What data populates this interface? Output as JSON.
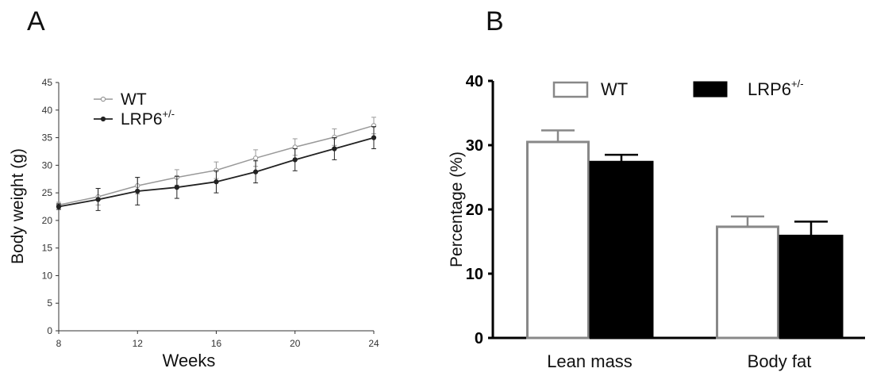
{
  "panels": {
    "A": {
      "letter": "A"
    },
    "B": {
      "letter": "B"
    }
  },
  "chart_data": [
    {
      "type": "line",
      "xlabel": "Weeks",
      "ylabel": "Body weight (g)",
      "xlim": [
        8,
        24
      ],
      "ylim": [
        0,
        45
      ],
      "xticks": [
        8,
        12,
        16,
        20,
        24
      ],
      "yticks": [
        0,
        5,
        10,
        15,
        20,
        25,
        30,
        35,
        40,
        45
      ],
      "legend_position": "top-left",
      "x": [
        8,
        10,
        12,
        14,
        16,
        18,
        20,
        22,
        24
      ],
      "series": [
        {
          "name": "WT",
          "color": "#999999",
          "marker": "open-circle",
          "values": [
            22.8,
            24.3,
            26.3,
            27.8,
            29.1,
            31.3,
            33.3,
            35.1,
            37.2
          ],
          "errors": [
            0.5,
            1.5,
            1.5,
            1.4,
            1.5,
            1.5,
            1.5,
            1.5,
            1.5
          ]
        },
        {
          "name": "LRP6",
          "name_sup": "+/-",
          "color": "#222222",
          "marker": "filled-circle",
          "values": [
            22.5,
            23.8,
            25.3,
            26.0,
            27.0,
            28.8,
            31.0,
            33.0,
            35.0
          ],
          "errors": [
            0.5,
            2.0,
            2.5,
            2.0,
            2.0,
            2.0,
            2.0,
            2.0,
            2.0
          ]
        }
      ]
    },
    {
      "type": "bar",
      "xlabel": "",
      "ylabel": "Percentage (%)",
      "ylim": [
        0,
        40
      ],
      "yticks": [
        0,
        10,
        20,
        30,
        40
      ],
      "categories": [
        "Lean mass",
        "Body fat"
      ],
      "legend_position": "top",
      "series": [
        {
          "name": "WT",
          "fill": "#ffffff",
          "stroke": "#888888",
          "values": [
            30.5,
            17.3
          ],
          "errors": [
            1.8,
            1.6
          ]
        },
        {
          "name": "LRP6",
          "name_sup": "+/-",
          "fill": "#000000",
          "stroke": "#000000",
          "values": [
            27.5,
            16.0
          ],
          "errors": [
            1.0,
            2.1
          ]
        }
      ]
    }
  ]
}
